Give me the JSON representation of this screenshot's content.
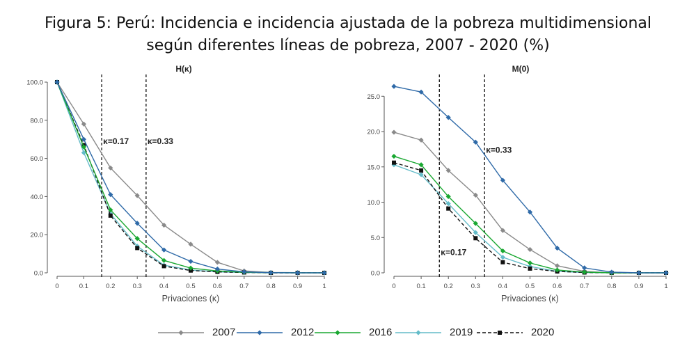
{
  "figure_title": {
    "line1": "Figura 5: Perú: Incidencia e incidencia ajustada de la pobreza multidimensional",
    "line2": "según diferentes líneas de pobreza, 2007 - 2020 (%)"
  },
  "colors": {
    "2007": "#8a8a8a",
    "2012": "#2f6aa8",
    "2016": "#1aa832",
    "2019": "#64bcc9",
    "2020": "#111111"
  },
  "legend": [
    {
      "name": "2007",
      "color": "#8a8a8a",
      "style": "solid",
      "marker": "diamond"
    },
    {
      "name": "2012",
      "color": "#2f6aa8",
      "style": "solid",
      "marker": "diamond"
    },
    {
      "name": "2016",
      "color": "#1aa832",
      "style": "solid",
      "marker": "diamond"
    },
    {
      "name": "2019",
      "color": "#64bcc9",
      "style": "solid",
      "marker": "diamond"
    },
    {
      "name": "2020",
      "color": "#111111",
      "style": "dashed",
      "marker": "square"
    }
  ],
  "chart_data": [
    {
      "type": "line",
      "title": "H(κ)",
      "xlabel": "Privaciones (κ)",
      "ylabel": "",
      "x": [
        0,
        0.1,
        0.2,
        0.3,
        0.4,
        0.5,
        0.6,
        0.7,
        0.8,
        0.9,
        1
      ],
      "xticklabels": [
        "0",
        "0.1",
        "0.2",
        "0.3",
        "0.4",
        "0.5",
        "0.6",
        "0.7",
        "0.8",
        "0.9",
        "1"
      ],
      "ylim": [
        0,
        100
      ],
      "yticks": [
        0,
        20,
        40,
        60,
        80,
        100
      ],
      "yticklabels": [
        "0.0",
        "20.0",
        "40.0",
        "60.0",
        "80.0",
        "100.0"
      ],
      "grid": false,
      "vlines": [
        {
          "x": 0.167,
          "label": "κ=0.17",
          "label_y": 69
        },
        {
          "x": 0.333,
          "label": "κ=0.33",
          "label_y": 69
        }
      ],
      "series": [
        {
          "name": "2007",
          "values": [
            100,
            78,
            55,
            40.5,
            25,
            15,
            5.5,
            1,
            0.2,
            0.1,
            0
          ]
        },
        {
          "name": "2012",
          "values": [
            100,
            70,
            41,
            26,
            12,
            6,
            2,
            0.5,
            0.1,
            0,
            0
          ]
        },
        {
          "name": "2016",
          "values": [
            100,
            66,
            33,
            18,
            6.5,
            2.5,
            1,
            0.3,
            0.1,
            0,
            0
          ]
        },
        {
          "name": "2019",
          "values": [
            100,
            63,
            31,
            14,
            4,
            1.5,
            0.5,
            0.2,
            0,
            0,
            0
          ]
        },
        {
          "name": "2020",
          "values": [
            100,
            67,
            30,
            13,
            3.5,
            1.2,
            0.5,
            0.2,
            0,
            0,
            0
          ]
        }
      ]
    },
    {
      "type": "line",
      "title": "M(0)",
      "xlabel": "Privaciones (κ)",
      "ylabel": "",
      "x": [
        0,
        0.1,
        0.2,
        0.3,
        0.4,
        0.5,
        0.6,
        0.7,
        0.8,
        0.9,
        1
      ],
      "xticklabels": [
        "0",
        "0.1",
        "0.2",
        "0.3",
        "0.4",
        "0.5",
        "0.6",
        "0.7",
        "0.8",
        "0.9",
        "1"
      ],
      "ylim": [
        0,
        27
      ],
      "yticks": [
        0,
        5,
        10,
        15,
        20,
        25
      ],
      "yticklabels": [
        "0.0",
        "5.0",
        "10.0",
        "15.0",
        "20.0",
        "25.0"
      ],
      "grid": false,
      "vlines": [
        {
          "x": 0.167,
          "label": "κ=0.17",
          "label_y": 2.9
        },
        {
          "x": 0.333,
          "label": "κ=0.33",
          "label_y": 17.4
        }
      ],
      "series": [
        {
          "name": "2007",
          "values": [
            19.9,
            18.8,
            14.5,
            11,
            6,
            3.3,
            1,
            0.2,
            0,
            0,
            0
          ]
        },
        {
          "name": "2012",
          "values": [
            26.4,
            25.6,
            22,
            18.5,
            13.1,
            8.6,
            3.5,
            0.7,
            0.1,
            0,
            0
          ]
        },
        {
          "name": "2016",
          "values": [
            16.5,
            15.3,
            10.8,
            7,
            3.1,
            1.4,
            0.4,
            0.1,
            0,
            0,
            0
          ]
        },
        {
          "name": "2019",
          "values": [
            15.3,
            13.9,
            9.8,
            5.7,
            2.2,
            0.9,
            0.2,
            0.05,
            0,
            0,
            0
          ]
        },
        {
          "name": "2020",
          "values": [
            15.6,
            14.5,
            9.1,
            4.9,
            1.5,
            0.6,
            0.2,
            0.05,
            0,
            0,
            0
          ]
        }
      ]
    }
  ]
}
